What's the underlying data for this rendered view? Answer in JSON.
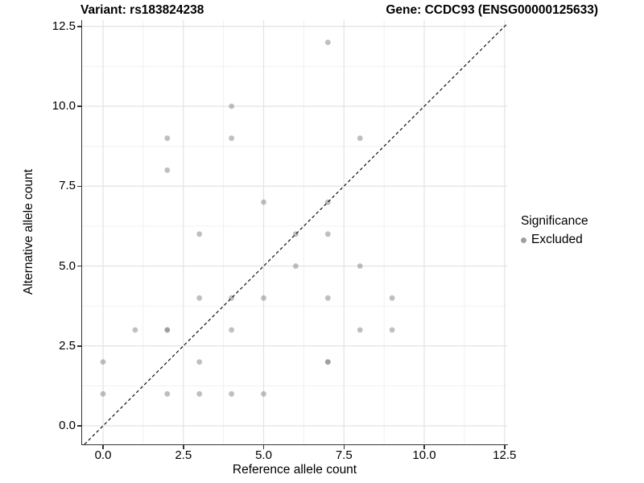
{
  "chart_data": {
    "type": "scatter",
    "title_left": "Variant: rs183824238",
    "title_right": "Gene: CCDC93 (ENSG00000125633)",
    "xlabel": "Reference allele count",
    "ylabel": "Alternative allele count",
    "xlim": [
      0,
      12.5
    ],
    "ylim": [
      0,
      12.5
    ],
    "x_ticks": [
      0,
      2.5,
      5,
      7.5,
      10,
      12.5
    ],
    "y_ticks": [
      0,
      2.5,
      5,
      7.5,
      10,
      12.5
    ],
    "x_minor_ticks": [
      1.25,
      3.75,
      6.25,
      8.75,
      11.25
    ],
    "y_minor_ticks": [
      1.25,
      3.75,
      6.25,
      8.75,
      11.25
    ],
    "tick_decimals": 1,
    "grid": true,
    "legend_position": "right",
    "identity_line": {
      "slope": 1,
      "intercept": 0,
      "style": "dashed",
      "color": "#000000"
    },
    "legend": {
      "title": "Significance",
      "items": [
        {
          "label": "Excluded",
          "marker": "circle",
          "marker_color": "#9e9e9e"
        }
      ]
    },
    "series": [
      {
        "name": "Excluded",
        "marker_color": "#7f7f7f",
        "marker_opacity": 0.5,
        "marker_radius": 3.4,
        "points": [
          [
            0,
            1
          ],
          [
            0,
            2
          ],
          [
            1,
            3
          ],
          [
            2,
            1
          ],
          [
            2,
            3
          ],
          [
            2,
            3
          ],
          [
            2,
            8
          ],
          [
            2,
            9
          ],
          [
            3,
            1
          ],
          [
            3,
            2
          ],
          [
            3,
            4
          ],
          [
            3,
            6
          ],
          [
            4,
            1
          ],
          [
            4,
            3
          ],
          [
            4,
            4
          ],
          [
            4,
            9
          ],
          [
            4,
            10
          ],
          [
            5,
            1
          ],
          [
            5,
            4
          ],
          [
            5,
            7
          ],
          [
            6,
            5
          ],
          [
            6,
            6
          ],
          [
            7,
            2
          ],
          [
            7,
            2
          ],
          [
            7,
            4
          ],
          [
            7,
            6
          ],
          [
            7,
            7
          ],
          [
            7,
            12
          ],
          [
            8,
            3
          ],
          [
            8,
            5
          ],
          [
            8,
            9
          ],
          [
            9,
            3
          ],
          [
            9,
            4
          ]
        ]
      }
    ],
    "colors": {
      "grid_major": "#e3e3e3",
      "grid_minor": "#f0f0f0",
      "axis_line": "#333333",
      "text": "#000000",
      "background": "#ffffff"
    }
  }
}
